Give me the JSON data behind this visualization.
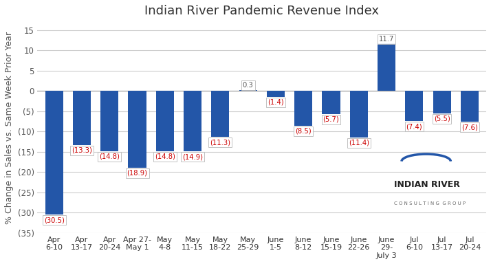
{
  "title": "Indian River Pandemic Revenue Index",
  "ylabel": "% Change in Sales vs. Same Week Prior Year",
  "categories": [
    "Apr\n6-10",
    "Apr\n13-17",
    "Apr\n20-24",
    "Apr 27-\nMay 1",
    "May\n4-8",
    "May\n11-15",
    "May\n18-22",
    "May\n25-29",
    "June\n1-5",
    "June\n8-12",
    "June\n15-19",
    "June\n22-26",
    "June\n29-\nJuly 3",
    "Jul\n6-10",
    "Jul\n13-17",
    "Jul\n20-24"
  ],
  "values": [
    -30.5,
    -13.3,
    -14.8,
    -18.9,
    -14.8,
    -14.9,
    -11.3,
    0.3,
    -1.4,
    -8.5,
    -5.7,
    -11.4,
    11.7,
    -7.4,
    -5.5,
    -7.6
  ],
  "bar_color": "#2356a8",
  "label_color": "#cc0000",
  "positive_label_color": "#555555",
  "ylim": [
    -35,
    17
  ],
  "yticks": [
    -35,
    -30,
    -25,
    -20,
    -15,
    -10,
    -5,
    0,
    5,
    10,
    15
  ],
  "background_color": "#ffffff",
  "grid_color": "#cccccc",
  "title_fontsize": 13,
  "axis_fontsize": 9,
  "tick_fontsize": 8.5
}
